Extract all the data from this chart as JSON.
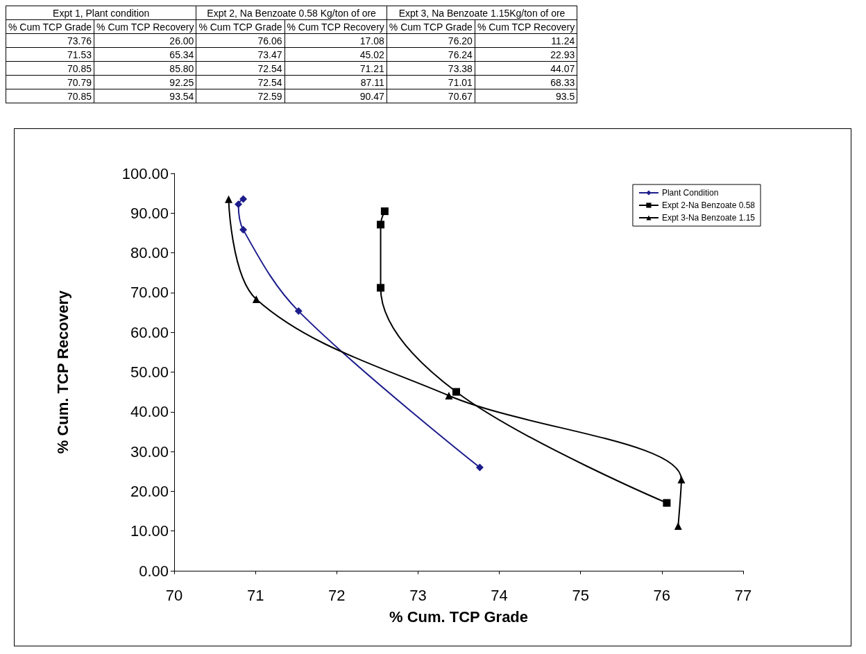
{
  "chart_data": [
    {
      "type": "other",
      "annotations": [
        "Expt 1, Plant condition",
        "Expt 2,  Na Benzoate 0.58 Kg/ton of ore",
        "Expt 3,  Na Benzoate 1.15Kg/ton of ore",
        "% Cum TCP Grade",
        "% Cum TCP Recovery",
        "% Cum TCP Grade",
        "% Cum TCP Recovery",
        "% Cum TCP Grade",
        "% Cum TCP Recovery",
        "73.76",
        "26.00",
        "76.06",
        "17.08",
        "76.20",
        "11.24",
        "71.53",
        "65.34",
        "73.47",
        "45.02",
        "76.24",
        "22.93",
        "70.85",
        "85.80",
        "72.54",
        "71.21",
        "73.38",
        "44.07",
        "70.79",
        "92.25",
        "72.54",
        "87.11",
        "71.01",
        "68.33",
        "70.85",
        "93.54",
        "72.59",
        "90.47",
        "70.67",
        "93.5"
      ]
    },
    {
      "type": "line",
      "xlabel": "% Cum. TCP Grade",
      "ylabel": "% Cum. TCP Recovery",
      "series": [
        {
          "name": "Plant Condition",
          "color": "#1c1c8c",
          "marker": "diamond",
          "x": [
            73.76,
            71.53,
            70.85,
            70.79,
            70.85
          ],
          "values": [
            26.0,
            65.34,
            85.8,
            92.25,
            93.54
          ]
        },
        {
          "name": "Expt 2-Na Benzoate 0.58",
          "color": "#000000",
          "marker": "square",
          "x": [
            76.06,
            73.47,
            72.54,
            72.54,
            72.59
          ],
          "values": [
            17.08,
            45.02,
            71.21,
            87.11,
            90.47
          ]
        },
        {
          "name": "Expt 3-Na Benzoate 1.15",
          "color": "#000000",
          "marker": "triangle",
          "x": [
            76.2,
            76.24,
            73.38,
            71.01,
            70.67
          ],
          "values": [
            11.24,
            22.93,
            44.07,
            68.33,
            93.5
          ]
        }
      ],
      "xlim": [
        70,
        77
      ],
      "xticks": [
        70,
        71,
        72,
        73,
        74,
        75,
        76,
        77
      ],
      "ylim": [
        0,
        100
      ],
      "yticks": [
        {
          "value": 0,
          "label": "0.00"
        },
        {
          "value": 10,
          "label": "10.00"
        },
        {
          "value": 20,
          "label": "20.00"
        },
        {
          "value": 30,
          "label": "30.00"
        },
        {
          "value": 40,
          "label": "40.00"
        },
        {
          "value": 50,
          "label": "50.00"
        },
        {
          "value": 60,
          "label": "60.00"
        },
        {
          "value": 70,
          "label": "70.00"
        },
        {
          "value": 80,
          "label": "80.00"
        },
        {
          "value": 90,
          "label": "90.00"
        },
        {
          "value": 100,
          "label": "100.00"
        }
      ],
      "grid": false,
      "legend": "top right"
    }
  ]
}
